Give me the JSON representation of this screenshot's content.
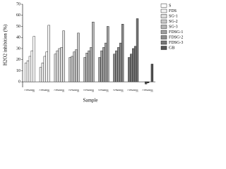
{
  "chart_data": {
    "type": "bar",
    "y_label": "H2O2 inhibition (%)",
    "x_label": "Sample",
    "categories": [
      "2",
      "4",
      "6",
      "8",
      "10"
    ],
    "ylim": [
      -5,
      70
    ],
    "yticks": [
      0,
      10,
      20,
      30,
      40,
      50,
      60,
      70
    ],
    "series": [
      {
        "name": "S",
        "color": "#ffffff",
        "values": [
          17,
          19,
          23,
          28,
          41
        ]
      },
      {
        "name": "FDS",
        "color": "#f2f2f2",
        "values": [
          13,
          17,
          23,
          27,
          51
        ]
      },
      {
        "name": "SG-1",
        "color": "#dddddd",
        "values": [
          25,
          28,
          30,
          31,
          46
        ]
      },
      {
        "name": "SG-2",
        "color": "#c8c8c8",
        "values": [
          22,
          23,
          27,
          29,
          44
        ]
      },
      {
        "name": "SG-3",
        "color": "#b4b4b4",
        "values": [
          22,
          26,
          28,
          31,
          54
        ]
      },
      {
        "name": "FDSG-1",
        "color": "#a0a0a0",
        "values": [
          22,
          28,
          31,
          35,
          50
        ]
      },
      {
        "name": "FDSG-2",
        "color": "#8c8c8c",
        "values": [
          25,
          28,
          31,
          35,
          52
        ]
      },
      {
        "name": "FDSG-3",
        "color": "#787878",
        "values": [
          22,
          25,
          30,
          32,
          57
        ]
      },
      {
        "name": "GB",
        "color": "#555555",
        "values": [
          0,
          -2,
          -1,
          0,
          16
        ]
      }
    ]
  }
}
